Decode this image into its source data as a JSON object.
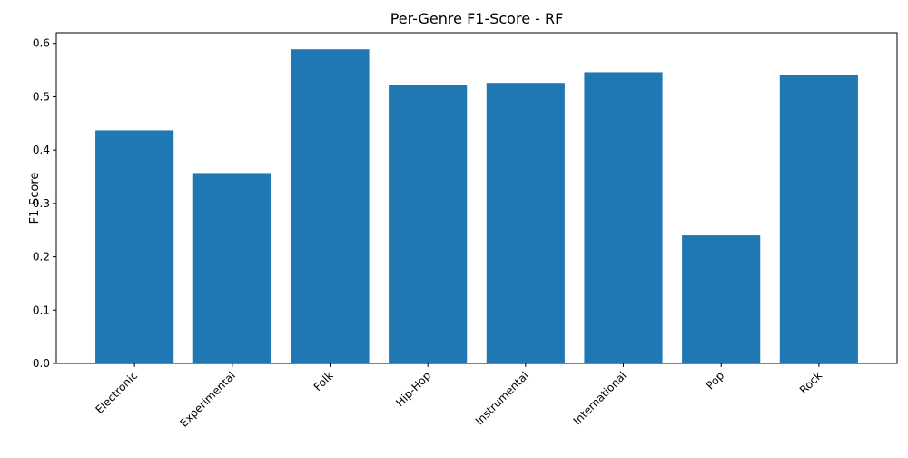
{
  "chart_data": {
    "type": "bar",
    "title": "Per-Genre F1-Score - RF",
    "xlabel": "",
    "ylabel": "F1-Score",
    "categories": [
      "Electronic",
      "Experimental",
      "Folk",
      "Hip-Hop",
      "Instrumental",
      "International",
      "Pop",
      "Rock"
    ],
    "values": [
      0.437,
      0.357,
      0.589,
      0.522,
      0.526,
      0.546,
      0.24,
      0.541
    ],
    "ylim": [
      0,
      0.62
    ],
    "yticks": [
      "0.0",
      "0.1",
      "0.2",
      "0.3",
      "0.4",
      "0.5",
      "0.6"
    ],
    "grid": false,
    "legend": "none",
    "colors": {
      "bar": "#1f77b4",
      "axis": "#000000",
      "background": "#ffffff"
    }
  }
}
